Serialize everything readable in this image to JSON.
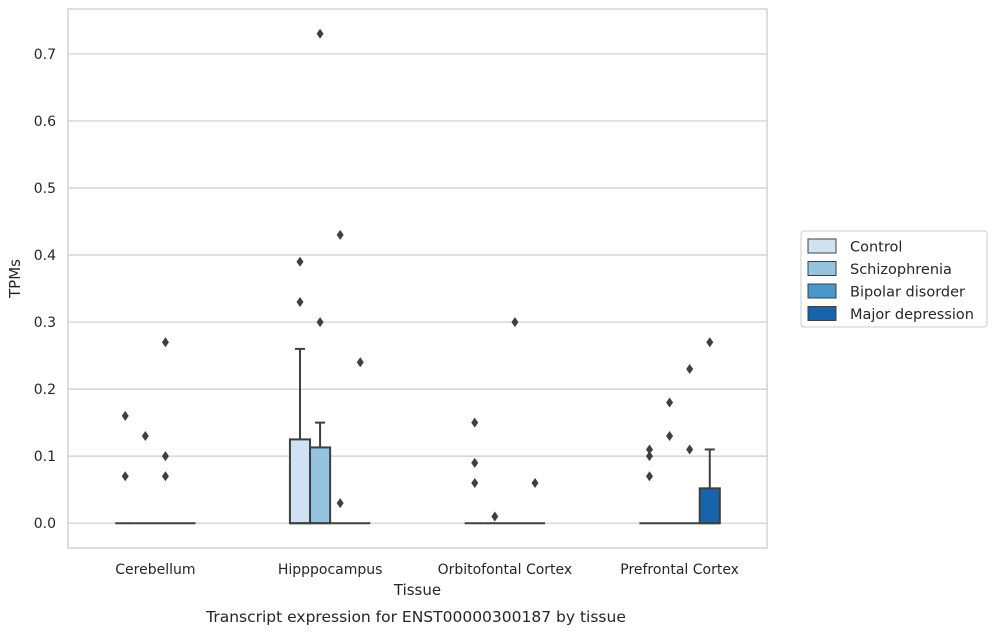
{
  "chart_data": {
    "type": "box",
    "caption": "Transcript expression for ENST00000300187 by tissue",
    "xlabel": "Tissue",
    "ylabel": "TPMs",
    "ylim": [
      -0.037,
      0.767
    ],
    "yticks": [
      0.0,
      0.1,
      0.2,
      0.3,
      0.4,
      0.5,
      0.6,
      0.7
    ],
    "ytick_labels": [
      "0.0",
      "0.1",
      "0.2",
      "0.3",
      "0.4",
      "0.5",
      "0.6",
      "0.7"
    ],
    "grid": "horizontal",
    "legend_position": "right",
    "categories": [
      "Cerebellum",
      "Hipppocampus",
      "Orbitofontal Cortex",
      "Prefrontal Cortex"
    ],
    "series": [
      {
        "name": "Control",
        "color": "#d0e1f2",
        "boxes": [
          {
            "q1": 0,
            "median": 0,
            "q3": 0,
            "whisker_low": 0,
            "whisker_high": 0,
            "outliers": [
              0.16,
              0.07
            ]
          },
          {
            "q1": 0,
            "median": 0,
            "q3": 0.125,
            "whisker_low": 0,
            "whisker_high": 0.26,
            "outliers": [
              0.39,
              0.33
            ]
          },
          {
            "q1": 0,
            "median": 0,
            "q3": 0,
            "whisker_low": 0,
            "whisker_high": 0,
            "outliers": [
              0.15,
              0.09,
              0.06
            ]
          },
          {
            "q1": 0,
            "median": 0,
            "q3": 0,
            "whisker_low": 0,
            "whisker_high": 0,
            "outliers": [
              0.11,
              0.1,
              0.07
            ]
          }
        ]
      },
      {
        "name": "Schizophrenia",
        "color": "#94c4df",
        "boxes": [
          {
            "q1": 0,
            "median": 0,
            "q3": 0,
            "whisker_low": 0,
            "whisker_high": 0,
            "outliers": [
              0.13
            ]
          },
          {
            "q1": 0,
            "median": 0,
            "q3": 0.113,
            "whisker_low": 0,
            "whisker_high": 0.15,
            "outliers": [
              0.73,
              0.3
            ]
          },
          {
            "q1": 0,
            "median": 0,
            "q3": 0,
            "whisker_low": 0,
            "whisker_high": 0,
            "outliers": [
              0.01
            ]
          },
          {
            "q1": 0,
            "median": 0,
            "q3": 0,
            "whisker_low": 0,
            "whisker_high": 0,
            "outliers": [
              0.18,
              0.13
            ]
          }
        ]
      },
      {
        "name": "Bipolar disorder",
        "color": "#4a98c9",
        "boxes": [
          {
            "q1": 0,
            "median": 0,
            "q3": 0,
            "whisker_low": 0,
            "whisker_high": 0,
            "outliers": [
              0.27,
              0.1,
              0.07
            ]
          },
          {
            "q1": 0,
            "median": 0,
            "q3": 0,
            "whisker_low": 0,
            "whisker_high": 0,
            "outliers": [
              0.43,
              0.03
            ]
          },
          {
            "q1": 0,
            "median": 0,
            "q3": 0,
            "whisker_low": 0,
            "whisker_high": 0,
            "outliers": [
              0.3
            ]
          },
          {
            "q1": 0,
            "median": 0,
            "q3": 0,
            "whisker_low": 0,
            "whisker_high": 0,
            "outliers": [
              0.23,
              0.11
            ]
          }
        ]
      },
      {
        "name": "Major depression",
        "color": "#1764ab",
        "boxes": [
          {
            "q1": 0,
            "median": 0,
            "q3": 0,
            "whisker_low": 0,
            "whisker_high": 0,
            "outliers": []
          },
          {
            "q1": 0,
            "median": 0,
            "q3": 0,
            "whisker_low": 0,
            "whisker_high": 0,
            "outliers": [
              0.24
            ]
          },
          {
            "q1": 0,
            "median": 0,
            "q3": 0,
            "whisker_low": 0,
            "whisker_high": 0,
            "outliers": [
              0.06
            ]
          },
          {
            "q1": 0,
            "median": 0,
            "q3": 0.052,
            "whisker_low": 0,
            "whisker_high": 0.11,
            "outliers": [
              0.27
            ]
          }
        ]
      }
    ]
  }
}
